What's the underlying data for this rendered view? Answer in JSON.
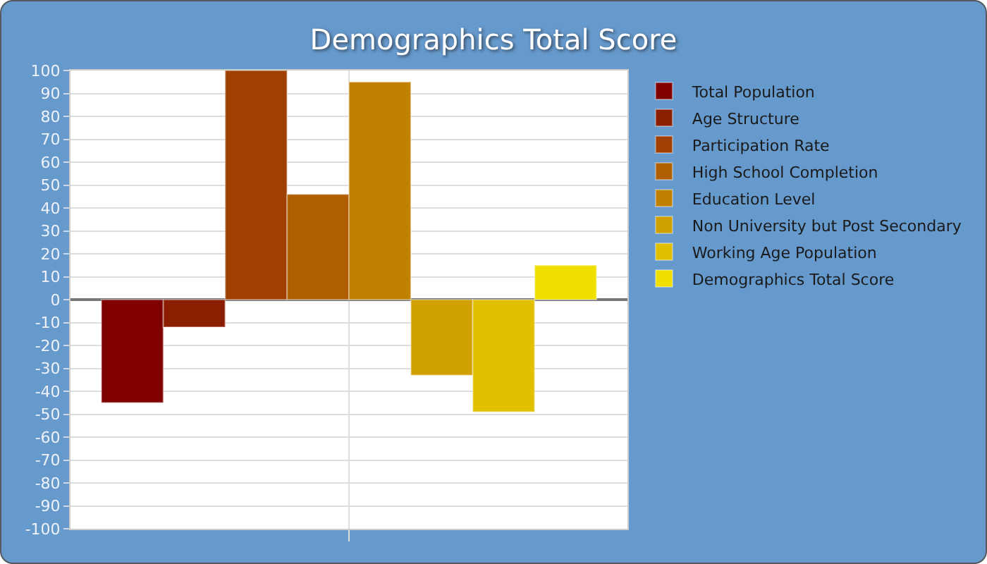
{
  "chart_data": {
    "type": "bar",
    "title": "Demographics Total Score",
    "categories": [
      null
    ],
    "series": [
      {
        "name": "Total Population",
        "color": "#800000",
        "values": [
          -45
        ]
      },
      {
        "name": "Age Structure",
        "color": "#8b1e00",
        "values": [
          -12
        ]
      },
      {
        "name": "Participation Rate",
        "color": "#a04000",
        "values": [
          100
        ]
      },
      {
        "name": "High School Completion",
        "color": "#b05f00",
        "values": [
          46
        ]
      },
      {
        "name": "Education Level",
        "color": "#c08000",
        "values": [
          95
        ]
      },
      {
        "name": "Non University but Post Secondary",
        "color": "#d0a000",
        "values": [
          -33
        ]
      },
      {
        "name": "Working Age Population",
        "color": "#e0c000",
        "values": [
          -49
        ]
      },
      {
        "name": "Demographics Total Score",
        "color": "#f0e000",
        "values": [
          15
        ]
      }
    ],
    "ylim": [
      -100,
      100
    ],
    "yticks": [
      -100,
      -90,
      -80,
      -70,
      -60,
      -50,
      -40,
      -30,
      -20,
      -10,
      0,
      10,
      20,
      30,
      40,
      50,
      60,
      70,
      80,
      90,
      100
    ],
    "grid": true,
    "legend": "top right"
  }
}
